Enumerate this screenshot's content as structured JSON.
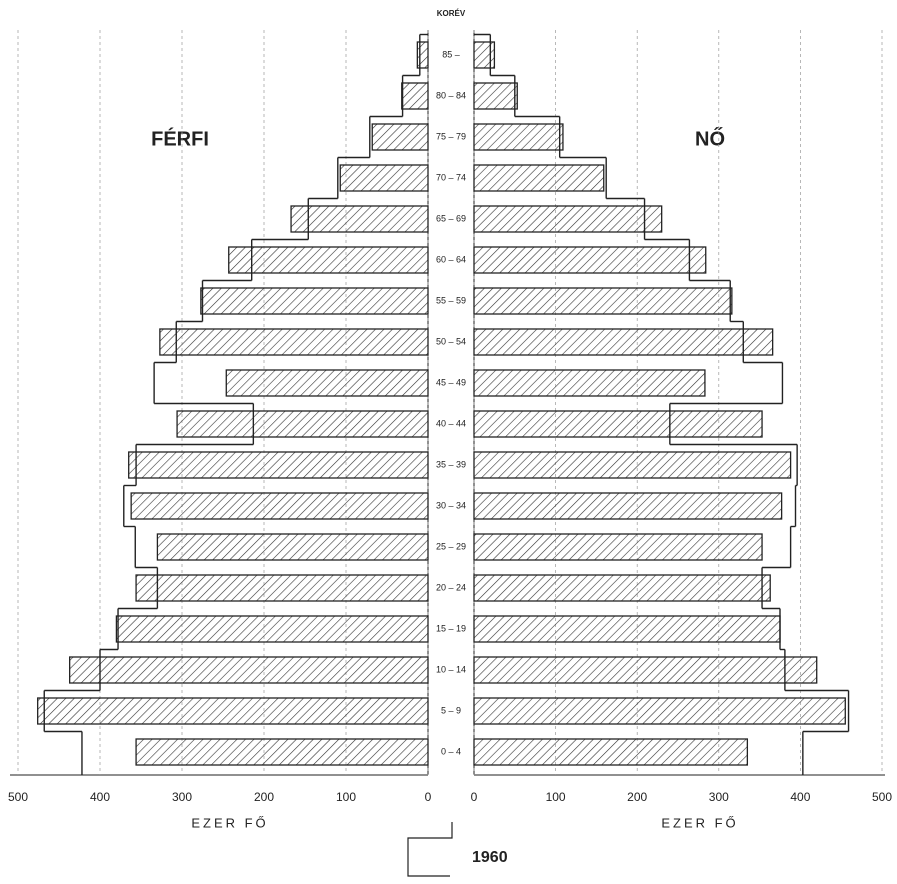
{
  "chart_data": {
    "type": "population_pyramid",
    "axis_title": "KORÉV",
    "categories": [
      "85 –",
      "80 – 84",
      "75 – 79",
      "70 – 74",
      "65 – 69",
      "60 – 64",
      "55 – 59",
      "50 – 54",
      "45 – 49",
      "40 – 44",
      "35 – 39",
      "30 – 34",
      "25 – 29",
      "20 – 24",
      "15 – 19",
      "10 – 14",
      "5 – 9",
      "0 – 4"
    ],
    "outline_label": "1960",
    "xlim": [
      0,
      500
    ],
    "xticks": [
      0,
      100,
      200,
      300,
      400,
      500
    ],
    "color": "#222222",
    "grid": true,
    "series": [
      {
        "name": "FÉRFI",
        "side": "left",
        "xlabel": "EZER FŐ",
        "values": [
          13,
          32,
          68,
          107,
          167,
          243,
          277,
          327,
          246,
          306,
          365,
          362,
          330,
          356,
          380,
          437,
          476,
          356
        ],
        "outline": [
          10,
          31,
          71,
          110,
          146,
          215,
          275,
          307,
          334,
          213,
          356,
          371,
          357,
          330,
          378,
          400,
          468,
          422
        ]
      },
      {
        "name": "NŐ",
        "side": "right",
        "xlabel": "EZER FŐ",
        "values": [
          25,
          53,
          109,
          159,
          230,
          284,
          316,
          366,
          283,
          353,
          388,
          377,
          353,
          363,
          375,
          420,
          455,
          335
        ],
        "outline": [
          20,
          50,
          105,
          162,
          209,
          264,
          314,
          330,
          378,
          240,
          396,
          394,
          388,
          353,
          375,
          381,
          459,
          403
        ]
      }
    ]
  }
}
